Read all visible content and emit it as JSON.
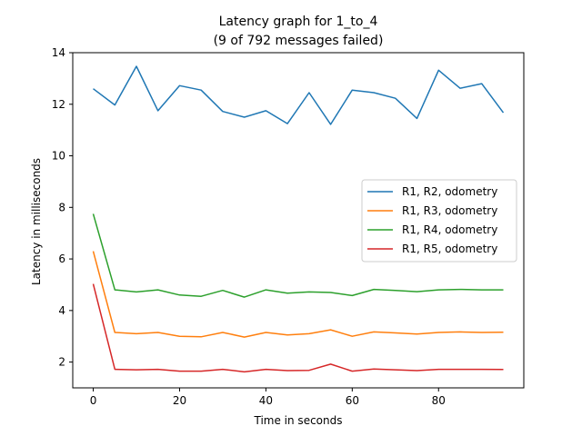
{
  "chart_data": {
    "type": "line",
    "title": "Latency graph for 1_to_4",
    "subtitle": "(9 of 792 messages failed)",
    "xlabel": "Time in seconds",
    "ylabel": "Latency in milliseconds",
    "xlim": [
      -4.75,
      99.75
    ],
    "ylim": [
      1.0,
      14.0
    ],
    "xticks": [
      0,
      20,
      40,
      60,
      80
    ],
    "yticks": [
      2,
      4,
      6,
      8,
      10,
      12,
      14
    ],
    "grid": false,
    "legend_position": "center-right",
    "x": [
      0,
      5,
      10,
      15,
      20,
      25,
      30,
      35,
      40,
      45,
      50,
      55,
      60,
      65,
      70,
      75,
      80,
      85,
      90,
      95
    ],
    "series": [
      {
        "name": "R1, R2, odometry",
        "color": "#1f77b4",
        "values": [
          12.6,
          11.97,
          13.47,
          11.75,
          12.72,
          12.55,
          11.72,
          11.5,
          11.75,
          11.25,
          12.45,
          11.22,
          12.55,
          12.45,
          12.23,
          11.45,
          13.32,
          12.62,
          12.8,
          11.67
        ]
      },
      {
        "name": "R1, R3, odometry",
        "color": "#ff7f0e",
        "values": [
          6.3,
          3.15,
          3.1,
          3.15,
          3.0,
          2.98,
          3.15,
          2.97,
          3.15,
          3.05,
          3.1,
          3.25,
          3.0,
          3.17,
          3.13,
          3.09,
          3.15,
          3.17,
          3.15,
          3.16
        ]
      },
      {
        "name": "R1, R4, odometry",
        "color": "#2ca02c",
        "values": [
          7.75,
          4.8,
          4.72,
          4.8,
          4.6,
          4.55,
          4.78,
          4.52,
          4.8,
          4.67,
          4.72,
          4.7,
          4.58,
          4.82,
          4.78,
          4.73,
          4.8,
          4.82,
          4.8,
          4.8
        ]
      },
      {
        "name": "R1, R5, odometry",
        "color": "#d62728",
        "values": [
          5.03,
          1.72,
          1.7,
          1.72,
          1.65,
          1.65,
          1.72,
          1.62,
          1.72,
          1.67,
          1.68,
          1.92,
          1.65,
          1.73,
          1.7,
          1.67,
          1.72,
          1.72,
          1.72,
          1.71
        ]
      }
    ]
  }
}
